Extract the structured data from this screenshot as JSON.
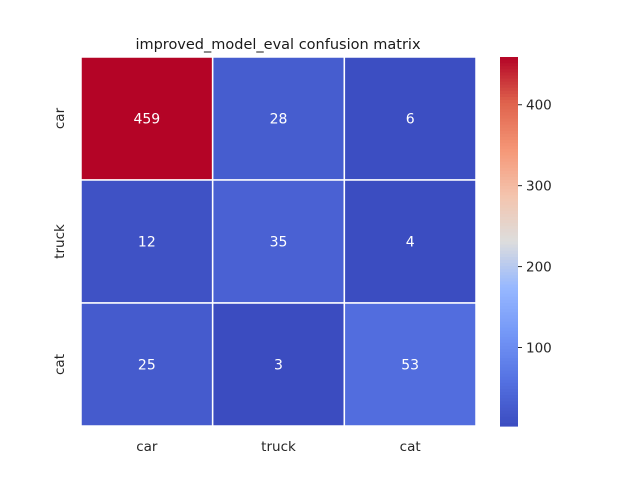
{
  "chart_data": {
    "type": "heatmap",
    "title": "improved_model_eval confusion matrix",
    "xlabel": "",
    "ylabel": "",
    "x_categories": [
      "car",
      "truck",
      "cat"
    ],
    "y_categories": [
      "car",
      "truck",
      "cat"
    ],
    "values": [
      [
        459,
        28,
        6
      ],
      [
        12,
        35,
        4
      ],
      [
        25,
        3,
        53
      ]
    ],
    "colormap": "coolwarm",
    "vmin": 3,
    "vmax": 459,
    "colorbar_ticks": [
      100,
      200,
      300,
      400
    ],
    "annotations": true,
    "grid": false
  }
}
